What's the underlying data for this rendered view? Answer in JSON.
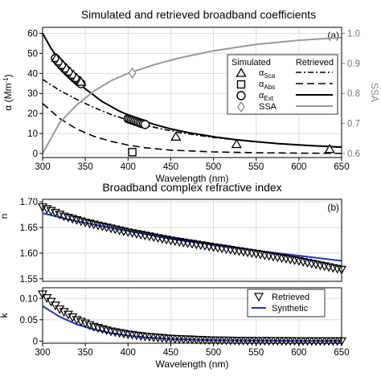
{
  "chart_data": [
    {
      "panel": "(a)",
      "type": "line",
      "title": "Simulated and retrieved broadband coefficients",
      "xlabel": "Wavelength (nm)",
      "ylabel_main": "α (Mm",
      "ylabel_exp": "-1",
      "ylabel_close": ")",
      "ylabel_right": "SSA",
      "xlim": [
        300,
        650
      ],
      "ylim": [
        -2,
        63
      ],
      "ylim_right": [
        0.6,
        1.0
      ],
      "xticks": [
        300,
        350,
        400,
        450,
        500,
        550,
        600,
        650
      ],
      "yticks": [
        0,
        10,
        20,
        30,
        40,
        50,
        60
      ],
      "yticks_right": [
        "0.6",
        "0.7",
        "0.8",
        "0.9",
        "1.0"
      ],
      "grid": true,
      "legend": {
        "position": "top-right",
        "header_left": "Simulated",
        "header_right": "Retrieved",
        "rows": [
          {
            "symbol": "triangle",
            "label_main": "α",
            "label_sub": "Sca",
            "line": "dash-dot"
          },
          {
            "symbol": "square",
            "label_main": "α",
            "label_sub": "Abs",
            "line": "dashed"
          },
          {
            "symbol": "circle",
            "label_main": "α",
            "label_sub": "Ext",
            "line": "solid"
          },
          {
            "symbol": "diamond",
            "label_main": "SSA",
            "label_sub": "",
            "line": "gray"
          }
        ]
      },
      "series": [
        {
          "name": "αExt retrieved",
          "style": "solid",
          "x": [
            300,
            310,
            320,
            330,
            340,
            350,
            370,
            390,
            410,
            430,
            450,
            470,
            500,
            525,
            550,
            575,
            600,
            625,
            650
          ],
          "y": [
            60,
            52.5,
            46.3,
            40.9,
            36.3,
            32.3,
            25.9,
            21.1,
            17.4,
            14.6,
            12.3,
            10.5,
            8.4,
            7.0,
            5.9,
            5.0,
            4.3,
            3.7,
            3.2
          ]
        },
        {
          "name": "αSca retrieved",
          "style": "dash-dot",
          "x": [
            300,
            320,
            340,
            360,
            380,
            400,
            420,
            440,
            460,
            500,
            550,
            600,
            650
          ],
          "y": [
            37,
            31.5,
            27,
            23,
            19.5,
            16.7,
            14.2,
            12.2,
            10.5,
            8.0,
            5.8,
            4.2,
            3.1
          ]
        },
        {
          "name": "αAbs retrieved",
          "style": "dashed",
          "x": [
            300,
            320,
            340,
            360,
            380,
            400,
            420,
            450,
            500,
            550,
            600,
            650
          ],
          "y": [
            25,
            17.5,
            12.2,
            8.6,
            6.1,
            4.2,
            2.9,
            1.7,
            0.8,
            0.4,
            0.2,
            0.1
          ]
        },
        {
          "name": "SSA retrieved",
          "style": "gray-right-axis",
          "x": [
            300,
            320,
            340,
            360,
            380,
            400,
            430,
            460,
            500,
            550,
            600,
            650
          ],
          "y": [
            0.6,
            0.703,
            0.762,
            0.808,
            0.842,
            0.867,
            0.895,
            0.918,
            0.942,
            0.963,
            0.977,
            0.986
          ]
        },
        {
          "name": "αExt simulated",
          "marker": "circle",
          "x": [
            315,
            317,
            319,
            321,
            323,
            325,
            327,
            329,
            331,
            333,
            335,
            337,
            339,
            341,
            343,
            345,
            400,
            402,
            404,
            406,
            408,
            410,
            412,
            414,
            416,
            418,
            420
          ],
          "y": [
            47.5,
            46.5,
            45.6,
            44.6,
            43.7,
            42.8,
            41.9,
            41.1,
            40.2,
            39.4,
            38.6,
            37.8,
            37.1,
            36.3,
            35.6,
            34.9,
            17.4,
            17.1,
            16.8,
            16.5,
            16.2,
            15.9,
            15.6,
            15.3,
            15.0,
            14.8,
            14.5
          ]
        },
        {
          "name": "αSca simulated",
          "marker": "triangle",
          "x": [
            316,
            320,
            324,
            328,
            332,
            336,
            340,
            344,
            345,
            456,
            527,
            636
          ],
          "y": [
            47.6,
            45.9,
            44.1,
            42.4,
            40.8,
            39.2,
            37.6,
            36.2,
            35.7,
            8.3,
            4.6,
            2.1
          ]
        },
        {
          "name": "αAbs simulated",
          "marker": "square",
          "x": [
            405
          ],
          "y": [
            0.7
          ]
        },
        {
          "name": "SSA simulated",
          "marker": "diamond",
          "x": [
            405
          ],
          "y": [
            0.868
          ]
        }
      ]
    },
    {
      "panel": "(b)",
      "type": "line",
      "title": "Broadband complex refractive index",
      "xlabel": "Wavelength (nm)",
      "ylabel_top": "n",
      "ylabel_bottom": "k",
      "xlim": [
        300,
        650
      ],
      "ylim_n": [
        1.545,
        1.705
      ],
      "ylim_k": [
        -0.005,
        0.125
      ],
      "xticks": [
        300,
        350,
        400,
        450,
        500,
        550,
        600,
        650
      ],
      "yticks_n": [
        "1.55",
        "1.60",
        "1.65",
        "1.70"
      ],
      "yticks_k": [
        "0",
        "0.05",
        "0.10"
      ],
      "grid": true,
      "legend": {
        "position": "bottom-right",
        "rows": [
          {
            "symbol": "down-triangle",
            "label": "Retrieved"
          },
          {
            "symbol": "blue-line",
            "label": "Synthetic"
          }
        ]
      },
      "series": [
        {
          "name": "Synthetic n",
          "color": "#2233bb",
          "x": [
            300,
            325,
            350,
            400,
            450,
            500,
            550,
            600,
            650
          ],
          "y": [
            1.678,
            1.668,
            1.659,
            1.643,
            1.628,
            1.616,
            1.605,
            1.595,
            1.585
          ]
        },
        {
          "name": "Retrieved n",
          "marker": "down-triangle",
          "x": [
            300,
            325,
            350,
            400,
            450,
            500,
            550,
            600,
            650
          ],
          "y": [
            1.69,
            1.672,
            1.66,
            1.641,
            1.625,
            1.612,
            1.599,
            1.585,
            1.568
          ]
        },
        {
          "name": "Synthetic k",
          "color": "#2233bb",
          "x": [
            300,
            320,
            340,
            360,
            380,
            400,
            420,
            450,
            500,
            550,
            600,
            650
          ],
          "y": [
            0.082,
            0.057,
            0.039,
            0.027,
            0.019,
            0.013,
            0.009,
            0.005,
            0.002,
            0.001,
            0.0005,
            0.0002
          ]
        },
        {
          "name": "Retrieved k",
          "marker": "down-triangle",
          "x": [
            300,
            320,
            340,
            360,
            380,
            400,
            420,
            450,
            500,
            550,
            600,
            650
          ],
          "y": [
            0.11,
            0.075,
            0.05,
            0.034,
            0.023,
            0.016,
            0.011,
            0.006,
            0.002,
            0.001,
            0.0005,
            0.0002
          ]
        }
      ]
    }
  ]
}
